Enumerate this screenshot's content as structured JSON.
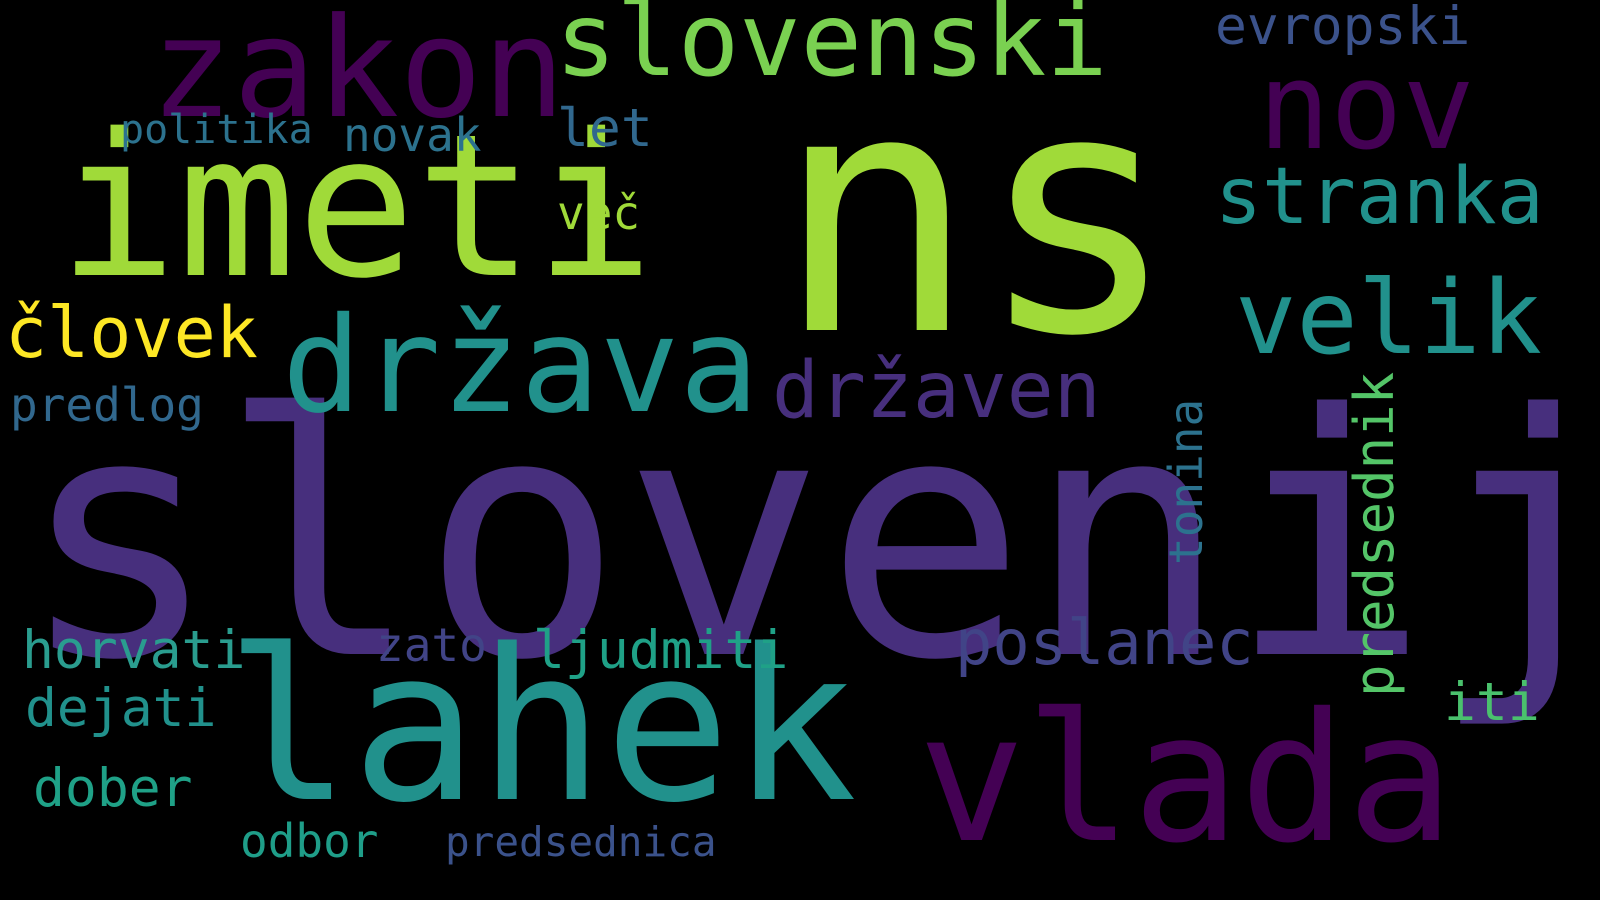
{
  "word_cloud": {
    "background": "#000000",
    "words": [
      {
        "id": "slovenija",
        "text": "slovenija",
        "color": "#472f7d",
        "orientation": "horizontal"
      },
      {
        "id": "ns",
        "text": "ns",
        "color": "#a0da39",
        "orientation": "horizontal"
      },
      {
        "id": "imeti",
        "text": "imeti",
        "color": "#a0da39",
        "orientation": "horizontal"
      },
      {
        "id": "lahek",
        "text": "lahek",
        "color": "#21918c",
        "orientation": "horizontal"
      },
      {
        "id": "vlada",
        "text": "vlada",
        "color": "#440154",
        "orientation": "horizontal"
      },
      {
        "id": "zakon",
        "text": "zakon",
        "color": "#440154",
        "orientation": "horizontal"
      },
      {
        "id": "drzava",
        "text": "država",
        "color": "#21918c",
        "orientation": "horizontal"
      },
      {
        "id": "slovenski",
        "text": "slovenski",
        "color": "#7ad151",
        "orientation": "horizontal"
      },
      {
        "id": "nov",
        "text": "nov",
        "color": "#440154",
        "orientation": "horizontal"
      },
      {
        "id": "velik",
        "text": "velik",
        "color": "#21918c",
        "orientation": "horizontal"
      },
      {
        "id": "drzaven",
        "text": "državen",
        "color": "#472f7d",
        "orientation": "horizontal"
      },
      {
        "id": "stranka",
        "text": "stranka",
        "color": "#21918c",
        "orientation": "horizontal"
      },
      {
        "id": "clovek",
        "text": "človek",
        "color": "#fde725",
        "orientation": "horizontal"
      },
      {
        "id": "poslanec",
        "text": "poslanec",
        "color": "#414487",
        "orientation": "horizontal"
      },
      {
        "id": "predsednik",
        "text": "predsednik",
        "color": "#54c568",
        "orientation": "vertical"
      },
      {
        "id": "evropski",
        "text": "evropski",
        "color": "#3b528b",
        "orientation": "horizontal"
      },
      {
        "id": "ljudmiti",
        "text": "ljudmiti",
        "color": "#1fa187",
        "orientation": "horizontal"
      },
      {
        "id": "horvati",
        "text": "horvati",
        "color": "#2a9d8f",
        "orientation": "horizontal"
      },
      {
        "id": "dejati",
        "text": "dejati",
        "color": "#21918c",
        "orientation": "horizontal"
      },
      {
        "id": "dober",
        "text": "dober",
        "color": "#1fa187",
        "orientation": "horizontal"
      },
      {
        "id": "iti",
        "text": "iti",
        "color": "#4ac16d",
        "orientation": "horizontal"
      },
      {
        "id": "odbor",
        "text": "odbor",
        "color": "#1f9e89",
        "orientation": "horizontal"
      },
      {
        "id": "predsednica",
        "text": "predsednica",
        "color": "#3b528b",
        "orientation": "horizontal"
      },
      {
        "id": "zato",
        "text": "zato",
        "color": "#414487",
        "orientation": "horizontal"
      },
      {
        "id": "novak",
        "text": "novak",
        "color": "#2c728e",
        "orientation": "horizontal"
      },
      {
        "id": "let",
        "text": "let",
        "color": "#31688e",
        "orientation": "horizontal"
      },
      {
        "id": "vec",
        "text": "več",
        "color": "#a0da39",
        "orientation": "horizontal"
      },
      {
        "id": "tonina",
        "text": "tonina",
        "color": "#2c728e",
        "orientation": "vertical"
      },
      {
        "id": "politika",
        "text": "politika",
        "color": "#2c728e",
        "orientation": "horizontal"
      },
      {
        "id": "predlog",
        "text": "predlog",
        "color": "#31688e",
        "orientation": "horizontal"
      }
    ]
  }
}
